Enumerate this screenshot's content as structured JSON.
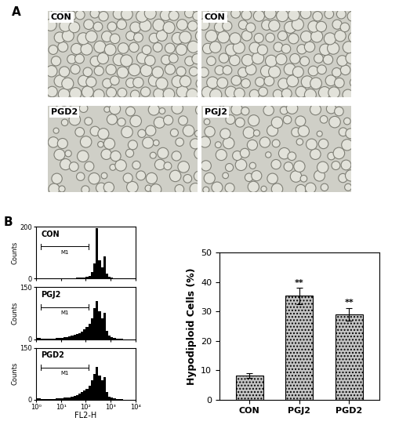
{
  "panel_labels": [
    "A",
    "B"
  ],
  "micrographs": [
    "CON",
    "CON",
    "PGD2",
    "PGJ2"
  ],
  "chart_data": [
    {
      "type": "histogram",
      "title": "CON",
      "ylabel": "Counts",
      "color": "#000000",
      "log": "x",
      "bins": [
        1,
        1.26,
        1.58,
        2,
        2.51,
        3.16,
        3.98,
        5.01,
        6.31,
        7.94,
        10,
        12.6,
        15.8,
        20,
        25.1,
        31.6,
        39.8,
        50.1,
        63.1,
        79.4,
        100,
        126,
        158,
        200,
        251,
        316,
        398,
        501,
        631,
        794,
        1000,
        1260,
        1580,
        2000,
        2510,
        3160,
        3980,
        5010,
        6310,
        7940,
        10000
      ],
      "counts": [
        2,
        2,
        1,
        1,
        1,
        1,
        1,
        1,
        1,
        1,
        1,
        1,
        1,
        2,
        2,
        2,
        3,
        3,
        4,
        5,
        6,
        10,
        25,
        60,
        195,
        70,
        45,
        85,
        20,
        8,
        4,
        2,
        1,
        1,
        0,
        0,
        0,
        0,
        0,
        0
      ],
      "xlim": [
        1,
        10000
      ],
      "xticks": [
        {
          "value": 1,
          "label": "10⁰"
        },
        {
          "value": 10,
          "label": "10¹"
        },
        {
          "value": 100,
          "label": "10²"
        },
        {
          "value": 1000,
          "label": "10³"
        },
        {
          "value": 10000,
          "label": "10⁴"
        }
      ],
      "ylim": [
        0,
        200
      ],
      "yticks": [
        0,
        200
      ],
      "tick_labels": "y",
      "gate": {
        "label": "M1",
        "range": [
          1.6,
          130
        ]
      }
    },
    {
      "type": "histogram",
      "title": "PGJ2",
      "ylabel": "Counts",
      "color": "#000000",
      "log": "x",
      "bins": [
        1,
        1.26,
        1.58,
        2,
        2.51,
        3.16,
        3.98,
        5.01,
        6.31,
        7.94,
        10,
        12.6,
        15.8,
        20,
        25.1,
        31.6,
        39.8,
        50.1,
        63.1,
        79.4,
        100,
        126,
        158,
        200,
        251,
        316,
        398,
        501,
        631,
        794,
        1000,
        1260,
        1580,
        2000,
        2510,
        3160,
        3980,
        5010,
        6310,
        7940,
        10000
      ],
      "counts": [
        3,
        3,
        2,
        2,
        2,
        2,
        2,
        2,
        3,
        3,
        4,
        5,
        6,
        8,
        10,
        12,
        15,
        18,
        22,
        28,
        35,
        45,
        60,
        90,
        110,
        80,
        60,
        75,
        25,
        10,
        5,
        3,
        2,
        1,
        1,
        0,
        0,
        0,
        0,
        0
      ],
      "xlim": [
        1,
        10000
      ],
      "xticks": [
        {
          "value": 1,
          "label": "10⁰"
        },
        {
          "value": 10,
          "label": "10¹"
        },
        {
          "value": 100,
          "label": "10²"
        },
        {
          "value": 1000,
          "label": "10³"
        },
        {
          "value": 10000,
          "label": "10⁴"
        }
      ],
      "ylim": [
        0,
        150
      ],
      "yticks": [
        0,
        150
      ],
      "tick_labels": "y",
      "gate": {
        "label": "M1",
        "range": [
          1.6,
          130
        ]
      }
    },
    {
      "type": "histogram",
      "title": "PGD2",
      "ylabel": "Counts",
      "xlabel": "FL2-H",
      "color": "#000000",
      "log": "x",
      "bins": [
        1,
        1.26,
        1.58,
        2,
        2.51,
        3.16,
        3.98,
        5.01,
        6.31,
        7.94,
        10,
        12.6,
        15.8,
        20,
        25.1,
        31.6,
        39.8,
        50.1,
        63.1,
        79.4,
        100,
        126,
        158,
        200,
        251,
        316,
        398,
        501,
        631,
        794,
        1000,
        1260,
        1580,
        2000,
        2510,
        3160,
        3980,
        5010,
        6310,
        7940,
        10000
      ],
      "counts": [
        3,
        3,
        2,
        2,
        2,
        2,
        2,
        2,
        3,
        3,
        4,
        5,
        6,
        7,
        9,
        11,
        14,
        17,
        21,
        26,
        32,
        40,
        55,
        75,
        95,
        70,
        55,
        65,
        22,
        9,
        5,
        3,
        2,
        1,
        1,
        0,
        0,
        0,
        0,
        0
      ],
      "xlim": [
        1,
        10000
      ],
      "xticks": [
        {
          "value": 1,
          "label": "10⁰"
        },
        {
          "value": 10,
          "label": "10¹"
        },
        {
          "value": 100,
          "label": "10²"
        },
        {
          "value": 1000,
          "label": "10³"
        },
        {
          "value": 10000,
          "label": "10⁴"
        }
      ],
      "ylim": [
        0,
        150
      ],
      "yticks": [
        0,
        150
      ],
      "gate": {
        "label": "M1",
        "range": [
          1.6,
          130
        ]
      }
    },
    {
      "type": "bar",
      "ylabel": "Hypodiploid Cells (%)",
      "color": "#c4c4c4",
      "categories": [
        "CON",
        "PGJ2",
        "PGD2"
      ],
      "values": [
        8.2,
        35.3,
        29.0
      ],
      "errors": [
        0.8,
        2.8,
        2.2
      ],
      "significance": [
        null,
        "**",
        "**"
      ],
      "ylim": [
        0,
        50
      ],
      "yticks": [
        0,
        10,
        20,
        30,
        40,
        50
      ]
    }
  ]
}
